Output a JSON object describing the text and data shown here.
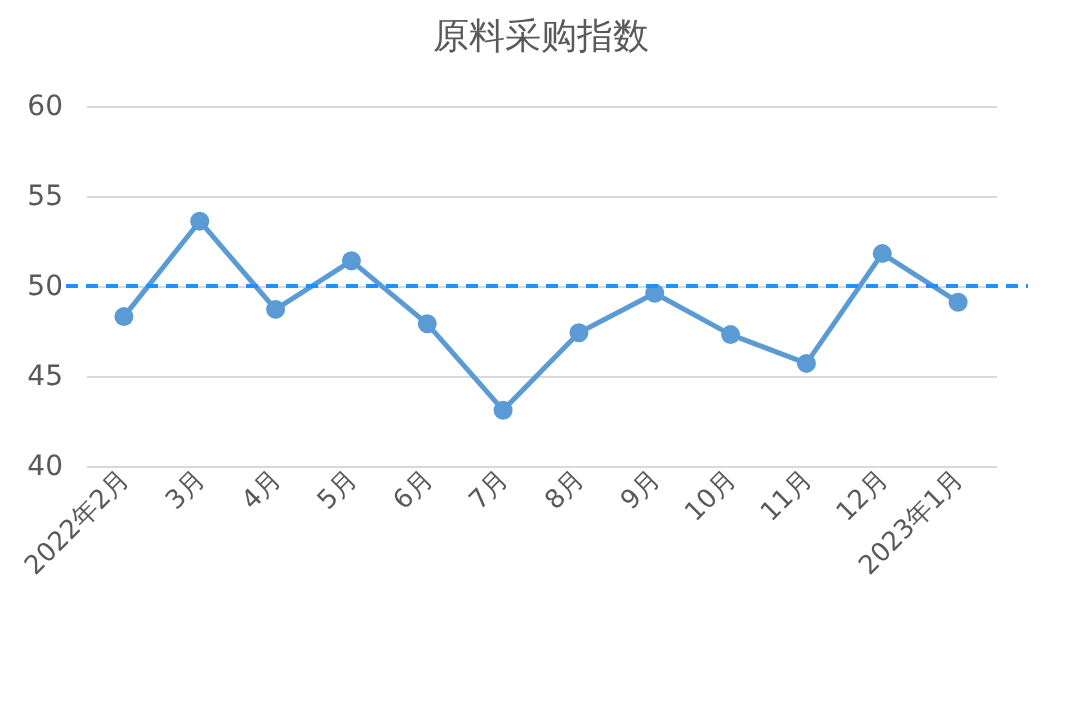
{
  "chart_data": {
    "type": "line",
    "title": "原料采购指数",
    "categories": [
      "2022年2月",
      "3月",
      "4月",
      "5月",
      "6月",
      "7月",
      "8月",
      "9月",
      "10月",
      "11月",
      "12月",
      "2023年1月"
    ],
    "series": [
      {
        "color": "#5b9bd5",
        "values": [
          48.3,
          53.6,
          48.7,
          51.4,
          47.9,
          43.1,
          47.4,
          49.6,
          47.3,
          45.7,
          51.8,
          49.1
        ]
      }
    ],
    "ylim": [
      40,
      60
    ],
    "yticks": [
      40,
      45,
      50,
      55,
      60
    ],
    "grid": "y",
    "marker": "circle",
    "line_style": "solid",
    "ref_lines": [
      {
        "axis": "y",
        "value": 50,
        "color": "#1e90ff",
        "line_style": "dashed"
      }
    ]
  }
}
